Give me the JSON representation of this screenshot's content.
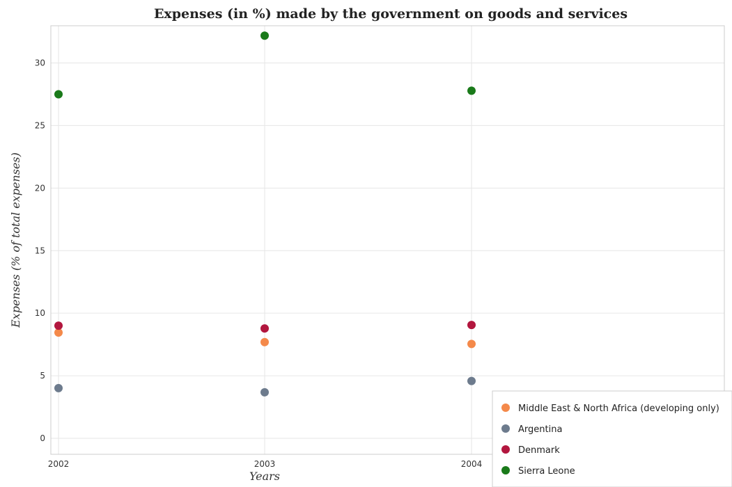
{
  "chart_data": {
    "type": "scatter",
    "title": "Expenses (in %) made by the government on goods and services",
    "xlabel": "Years",
    "ylabel": "Expenses (% of total expenses)",
    "categories": [
      "2002",
      "2003",
      "2004"
    ],
    "ylim": [
      0,
      33.5
    ],
    "yticks": [
      0,
      5,
      10,
      15,
      20,
      25,
      30
    ],
    "ytick_labels": [
      "0",
      "5",
      "10",
      "15",
      "20",
      "25",
      "30"
    ],
    "grid": true,
    "legend_position": "bottom-right",
    "series": [
      {
        "name": "Middle East & North Africa (developing only)",
        "color": "#f4894a",
        "values": [
          8.45,
          7.69,
          7.54
        ]
      },
      {
        "name": "Argentina",
        "color": "#6d7b8d",
        "values": [
          4.01,
          3.68,
          4.58
        ]
      },
      {
        "name": "Denmark",
        "color": "#b2163e",
        "values": [
          9.0,
          8.78,
          9.06
        ]
      },
      {
        "name": "Sierra Leone",
        "color": "#1a7a1a",
        "values": [
          27.5,
          32.18,
          27.78
        ]
      }
    ]
  }
}
